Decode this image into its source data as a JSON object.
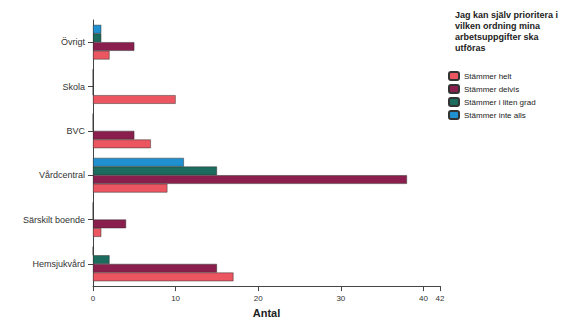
{
  "chart_data": {
    "type": "bar",
    "orientation": "horizontal",
    "legend_title": "Jag kan själv prioritera i vilken ordning mina arbetsuppgifter ska utföras",
    "xlabel": "Antal",
    "categories": [
      "Hemsjukvård",
      "Särskilt boende",
      "Vårdcentral",
      "BVC",
      "Skola",
      "Övrigt"
    ],
    "series": [
      {
        "name": "Stämmer inte alls",
        "color": "#1f91d0",
        "values": [
          0,
          0,
          11,
          0,
          0,
          1
        ]
      },
      {
        "name": "Stämmer i liten grad",
        "color": "#1b6b5f",
        "values": [
          2,
          0,
          15,
          0,
          0,
          1
        ]
      },
      {
        "name": "Stämmer delvis",
        "color": "#8a1e4c",
        "values": [
          15,
          4,
          38,
          5,
          0,
          5
        ]
      },
      {
        "name": "Stämmer helt",
        "color": "#ec5660",
        "values": [
          17,
          1,
          9,
          7,
          10,
          2
        ]
      }
    ],
    "xlim": [
      0,
      42
    ],
    "xticks": [
      0,
      10,
      20,
      30,
      40
    ],
    "grid": false,
    "legend": "right"
  }
}
